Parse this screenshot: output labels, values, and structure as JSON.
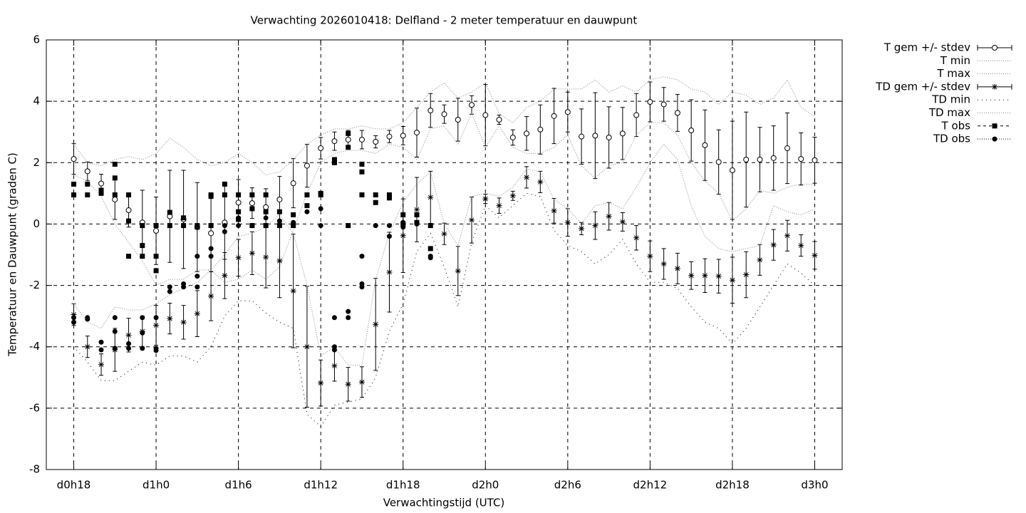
{
  "chart_data": {
    "type": "errorbar",
    "title": "Verwachting 2026010418: Delfland - 2 meter temperatuur en dauwpunt",
    "xlabel": "Verwachtingstijd (UTC)",
    "ylabel": "Temperatuur en Dauwpunt (graden C)",
    "xlim": [
      16,
      74
    ],
    "xticks": [
      {
        "value": 18,
        "label": "d0h18"
      },
      {
        "value": 24,
        "label": "d1h0"
      },
      {
        "value": 30,
        "label": "d1h6"
      },
      {
        "value": 36,
        "label": "d1h12"
      },
      {
        "value": 42,
        "label": "d1h18"
      },
      {
        "value": 48,
        "label": "d2h0"
      },
      {
        "value": 54,
        "label": "d2h6"
      },
      {
        "value": 60,
        "label": "d2h12"
      },
      {
        "value": 66,
        "label": "d2h18"
      },
      {
        "value": 72,
        "label": "d3h0"
      }
    ],
    "ylim": [
      -8,
      6
    ],
    "yticks": [
      -8,
      -6,
      -4,
      -2,
      0,
      2,
      4,
      6
    ],
    "grid": true,
    "legend": "outside-top-right",
    "x": [
      18,
      19,
      20,
      21,
      22,
      23,
      24,
      25,
      26,
      27,
      28,
      29,
      30,
      31,
      32,
      33,
      34,
      35,
      36,
      37,
      38,
      39,
      40,
      41,
      42,
      43,
      44,
      45,
      46,
      47,
      48,
      49,
      50,
      51,
      52,
      53,
      54,
      55,
      56,
      57,
      58,
      59,
      60,
      61,
      62,
      63,
      64,
      65,
      66,
      67,
      68,
      69,
      70,
      71,
      72
    ],
    "series": [
      {
        "name": "T gem +/- stdev",
        "color": "#000000",
        "marker": "circle-open",
        "line": "solid",
        "values": [
          2.12,
          1.72,
          1.32,
          0.8,
          0.45,
          0.05,
          -0.22,
          0.25,
          0.15,
          -0.1,
          -0.3,
          0.05,
          0.7,
          0.68,
          0.55,
          0.8,
          1.33,
          1.9,
          2.47,
          2.7,
          2.75,
          2.75,
          2.68,
          2.85,
          2.88,
          2.98,
          3.7,
          3.58,
          3.4,
          3.88,
          3.55,
          3.4,
          2.82,
          2.95,
          3.08,
          3.52,
          3.65,
          2.85,
          2.88,
          2.82,
          2.95,
          3.55,
          3.98,
          3.9,
          3.62,
          3.05,
          2.57,
          2.02,
          1.75,
          2.1,
          2.1,
          2.15,
          2.47,
          2.12,
          2.08
        ],
        "errors": [
          0.5,
          0.3,
          0.3,
          0.65,
          0.55,
          1.05,
          1.1,
          1.5,
          1.6,
          1.45,
          1.25,
          1.2,
          0.75,
          0.5,
          0.6,
          0.75,
          0.8,
          0.7,
          0.35,
          0.3,
          0.3,
          0.3,
          0.2,
          0.2,
          0.3,
          0.8,
          0.55,
          0.3,
          0.7,
          0.3,
          1.0,
          0.15,
          0.25,
          0.55,
          0.8,
          0.9,
          0.65,
          0.9,
          1.4,
          1.0,
          0.85,
          0.7,
          0.65,
          0.55,
          0.6,
          1.0,
          1.15,
          1.05,
          1.6,
          1.55,
          1.05,
          1.05,
          1.15,
          0.85,
          0.75
        ]
      },
      {
        "name": "T min",
        "color": "#888888",
        "line": "dotted",
        "values": [
          1.6,
          1.4,
          0.9,
          0.0,
          -0.6,
          -1.2,
          -2.0,
          -1.8,
          -1.8,
          -1.5,
          -1.5,
          -1.9,
          -1.8,
          -1.5,
          -1.8,
          -1.4,
          -0.2,
          1.0,
          2.0,
          2.3,
          2.4,
          2.4,
          2.3,
          2.6,
          2.5,
          2.1,
          3.1,
          3.2,
          2.6,
          3.6,
          2.5,
          3.2,
          2.5,
          2.3,
          2.3,
          2.5,
          2.9,
          1.9,
          1.5,
          1.9,
          2.0,
          2.9,
          3.3,
          3.3,
          2.9,
          2.0,
          1.4,
          1.0,
          0.1,
          0.5,
          1.1,
          1.0,
          1.2,
          1.3,
          1.3
        ]
      },
      {
        "name": "T max",
        "color": "#888888",
        "line": "dotted",
        "values": [
          2.6,
          2.0,
          1.9,
          2.1,
          2.2,
          2.1,
          2.3,
          2.8,
          2.5,
          2.1,
          1.9,
          2.0,
          2.3,
          2.0,
          1.6,
          1.7,
          2.1,
          2.6,
          2.9,
          3.1,
          3.1,
          3.2,
          3.1,
          3.1,
          3.3,
          3.8,
          4.3,
          4.6,
          4.1,
          4.3,
          4.6,
          3.6,
          3.3,
          3.8,
          4.0,
          4.4,
          4.4,
          4.4,
          4.7,
          4.3,
          4.5,
          4.3,
          4.7,
          4.8,
          4.7,
          4.4,
          4.3,
          3.9,
          4.3,
          4.2,
          3.9,
          4.1,
          4.7,
          3.8,
          3.5
        ]
      },
      {
        "name": "TD gem +/- stdev",
        "color": "#000000",
        "marker": "asterisk",
        "line": "solid",
        "values": [
          -2.95,
          -4.0,
          -4.58,
          -4.1,
          -3.62,
          -3.5,
          -3.3,
          -3.08,
          -3.2,
          -2.92,
          -2.35,
          -1.68,
          -1.1,
          -0.95,
          -1.08,
          -1.2,
          -2.18,
          -4.0,
          -5.18,
          -4.62,
          -5.22,
          -5.15,
          -3.27,
          -1.57,
          -0.38,
          0.47,
          0.87,
          -0.32,
          -1.53,
          0.13,
          0.82,
          0.6,
          0.92,
          1.52,
          1.37,
          0.43,
          0.05,
          -0.15,
          -0.05,
          0.25,
          0.07,
          -0.45,
          -1.05,
          -1.3,
          -1.45,
          -1.68,
          -1.68,
          -1.7,
          -1.83,
          -1.65,
          -1.17,
          -0.68,
          -0.38,
          -0.7,
          -1.02
        ],
        "errors": [
          0.35,
          0.35,
          0.35,
          0.7,
          0.55,
          0.5,
          0.65,
          0.5,
          0.55,
          0.75,
          0.8,
          0.75,
          0.6,
          0.7,
          1.0,
          1.2,
          1.85,
          1.97,
          0.75,
          0.5,
          0.55,
          0.5,
          1.5,
          1.3,
          1.2,
          1.05,
          0.85,
          0.35,
          0.8,
          0.75,
          0.15,
          0.25,
          0.15,
          0.35,
          0.35,
          0.4,
          0.45,
          0.2,
          0.45,
          0.45,
          0.3,
          0.4,
          0.5,
          0.5,
          0.5,
          0.45,
          0.55,
          0.55,
          0.75,
          0.75,
          0.5,
          0.5,
          0.5,
          0.35,
          0.45
        ]
      },
      {
        "name": "TD min",
        "color": "#000000",
        "line": "dotted-wide",
        "values": [
          -4.0,
          -4.5,
          -5.1,
          -5.1,
          -4.8,
          -4.5,
          -4.6,
          -4.3,
          -4.3,
          -4.5,
          -4.0,
          -3.0,
          -2.5,
          -2.5,
          -2.9,
          -3.2,
          -3.4,
          -6.2,
          -6.6,
          -5.9,
          -5.8,
          -5.7,
          -5.0,
          -3.5,
          -2.6,
          -0.9,
          -0.3,
          -1.4,
          -2.7,
          -0.6,
          0.6,
          0.2,
          0.6,
          1.0,
          0.9,
          -0.2,
          -0.7,
          -0.9,
          -1.3,
          -1.0,
          -0.5,
          -1.3,
          -1.9,
          -1.9,
          -2.1,
          -2.7,
          -3.2,
          -3.4,
          -3.9,
          -3.4,
          -2.7,
          -2.0,
          -1.3,
          -1.6,
          -2.0
        ]
      },
      {
        "name": "TD max",
        "color": "#888888",
        "line": "dotted",
        "values": [
          -2.6,
          -3.2,
          -3.4,
          -2.7,
          -2.8,
          -2.8,
          -2.6,
          -2.3,
          -2.1,
          -1.9,
          -1.5,
          -1.0,
          -0.4,
          -0.3,
          -0.1,
          0.3,
          -0.3,
          -2.0,
          -4.3,
          -4.0,
          -4.6,
          -4.6,
          -1.8,
          -0.3,
          0.7,
          1.3,
          1.7,
          0.0,
          -0.7,
          0.9,
          1.0,
          0.9,
          1.2,
          1.8,
          1.7,
          0.8,
          0.5,
          0.0,
          0.6,
          0.7,
          0.5,
          1.2,
          2.0,
          2.6,
          2.1,
          0.6,
          -0.4,
          -0.8,
          -0.9,
          -0.8,
          -0.7,
          0.6,
          0.4,
          0.3,
          0.5
        ]
      },
      {
        "name": "T obs",
        "color": "#000000",
        "marker": "square",
        "line": "dashed",
        "x": [
          18,
          18,
          19,
          19,
          20,
          20,
          21,
          21,
          21,
          22,
          22,
          22,
          23,
          23,
          23,
          24,
          24,
          24,
          25,
          25,
          26,
          26,
          27,
          27,
          28,
          28,
          28,
          29,
          29,
          30,
          30,
          30,
          31,
          31,
          31,
          32,
          32,
          32,
          33,
          33,
          34,
          34,
          35,
          35,
          36,
          36,
          37,
          37,
          38,
          38,
          38,
          39,
          39,
          39,
          40,
          40,
          41,
          41,
          42,
          42,
          43,
          43,
          44,
          44
        ],
        "values": [
          1.3,
          0.95,
          1.3,
          0.95,
          1.1,
          1.0,
          1.95,
          1.5,
          0.95,
          0.95,
          0.1,
          -1.05,
          -0.05,
          -0.7,
          -1.05,
          -0.05,
          -1.05,
          -1.52,
          0.38,
          -0.05,
          0.2,
          -0.05,
          -0.05,
          -0.1,
          0.95,
          0.9,
          -0.05,
          1.3,
          0.95,
          0.95,
          0.4,
          0.15,
          0.95,
          0.5,
          -0.05,
          0.95,
          0.4,
          -0.05,
          0.4,
          -0.05,
          0.3,
          -0.05,
          0.95,
          0.6,
          1.0,
          0.95,
          2.1,
          2.0,
          2.95,
          2.5,
          -0.05,
          1.95,
          1.7,
          0.95,
          0.95,
          0.7,
          0.95,
          0.85,
          0.3,
          0.0,
          0.3,
          0.05,
          -0.05,
          -0.8
        ]
      },
      {
        "name": "TD obs",
        "color": "#000000",
        "marker": "dot",
        "line": "dotted",
        "x": [
          18,
          18,
          19,
          19,
          20,
          20,
          21,
          21,
          21,
          22,
          22,
          23,
          23,
          23,
          24,
          24,
          24,
          25,
          25,
          26,
          26,
          27,
          27,
          27,
          28,
          28,
          28,
          29,
          29,
          30,
          30,
          31,
          31,
          32,
          32,
          33,
          33,
          34,
          34,
          35,
          36,
          36,
          37,
          37,
          37,
          38,
          38,
          39,
          39,
          39,
          40,
          40,
          41,
          41,
          42,
          42,
          43,
          43,
          44,
          44
        ],
        "values": [
          -3.05,
          -3.2,
          -3.05,
          -3.1,
          -3.85,
          -4.1,
          -3.05,
          -3.5,
          -4.05,
          -3.9,
          -4.05,
          -3.05,
          -3.55,
          -4.05,
          -3.05,
          -4.05,
          -4.12,
          -2.05,
          -2.2,
          -1.95,
          -2.05,
          -1.05,
          -1.7,
          -2.05,
          -0.05,
          -0.8,
          -1.05,
          -0.05,
          -0.25,
          0.2,
          -0.05,
          0.5,
          -0.05,
          0.2,
          -0.05,
          0.1,
          -0.05,
          0.05,
          -0.05,
          0.4,
          0.5,
          -0.05,
          -3.05,
          -4.0,
          -4.1,
          -2.85,
          -3.05,
          -1.05,
          -1.95,
          -2.05,
          -0.05,
          -0.05,
          -0.05,
          -0.4,
          0.05,
          -0.1,
          0.0,
          0.3,
          -1.05,
          -1.1
        ]
      }
    ]
  }
}
